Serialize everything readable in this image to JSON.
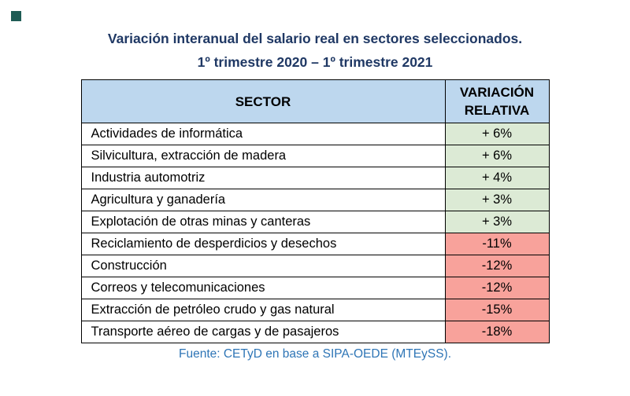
{
  "page": {
    "title_line1": "Variación interanual del salario real en sectores seleccionados.",
    "title_line2": "1º trimestre 2020 – 1º trimestre 2021",
    "source": "Fuente: CETyD en base a SIPA-OEDE (MTEySS)."
  },
  "colors": {
    "title": "#1F3864",
    "header_bg": "#BDD7EE",
    "positive_bg": "#DCEAD5",
    "negative_bg": "#F8A29B",
    "source_text": "#2E75B6",
    "corner_mark": "#1F5C55"
  },
  "table": {
    "header_sector": "SECTOR",
    "header_variation": "VARIACIÓN RELATIVA",
    "rows": [
      {
        "sector": "Actividades de informática",
        "value": "+ 6%",
        "trend": "positive"
      },
      {
        "sector": "Silvicultura, extracción de madera",
        "value": "+ 6%",
        "trend": "positive"
      },
      {
        "sector": "Industria automotriz",
        "value": "+ 4%",
        "trend": "positive"
      },
      {
        "sector": "Agricultura y ganadería",
        "value": "+ 3%",
        "trend": "positive"
      },
      {
        "sector": "Explotación de otras minas y canteras",
        "value": "+ 3%",
        "trend": "positive"
      },
      {
        "sector": "Reciclamiento de desperdicios y desechos",
        "value": "-11%",
        "trend": "negative"
      },
      {
        "sector": "Construcción",
        "value": "-12%",
        "trend": "negative"
      },
      {
        "sector": "Correos y telecomunicaciones",
        "value": "-12%",
        "trend": "negative"
      },
      {
        "sector": "Extracción de petróleo crudo y gas natural",
        "value": "-15%",
        "trend": "negative"
      },
      {
        "sector": "Transporte aéreo de cargas y de pasajeros",
        "value": "-18%",
        "trend": "negative"
      }
    ]
  },
  "chart_data": {
    "type": "table",
    "title": "Variación interanual del salario real en sectores seleccionados. 1º trimestre 2020 – 1º trimestre 2021",
    "columns": [
      "SECTOR",
      "VARIACIÓN RELATIVA"
    ],
    "categories": [
      "Actividades de informática",
      "Silvicultura, extracción de madera",
      "Industria automotriz",
      "Agricultura y ganadería",
      "Explotación de otras minas y canteras",
      "Reciclamiento de desperdicios y desechos",
      "Construcción",
      "Correos y telecomunicaciones",
      "Extracción de petróleo crudo y gas natural",
      "Transporte aéreo de cargas y de pasajeros"
    ],
    "values": [
      6,
      6,
      4,
      3,
      3,
      -11,
      -12,
      -12,
      -15,
      -18
    ],
    "unit": "%",
    "source": "Fuente: CETyD en base a SIPA-OEDE (MTEySS)."
  }
}
